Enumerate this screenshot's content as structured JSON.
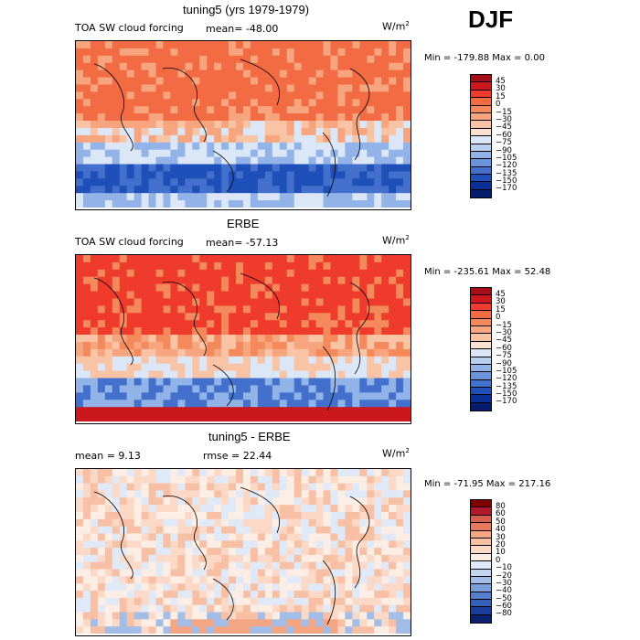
{
  "season": "DJF",
  "panels": [
    {
      "title": "tuning5 (yrs 1979-1979)",
      "field": "TOA SW cloud forcing",
      "mean": "mean= -48.00",
      "rmse": "",
      "units": "W/m",
      "units_exp": "2",
      "minmax": "Min = -179.88 Max =    0.00",
      "colorbar": [
        "45",
        "30",
        "15",
        "0",
        "−15",
        "−30",
        "−45",
        "−60",
        "−75",
        "−90",
        "−105",
        "−120",
        "−135",
        "−150",
        "−170"
      ],
      "colors": [
        "#a50f15",
        "#cb181d",
        "#ef3b2c",
        "#f26b42",
        "#f48a5c",
        "#f6a57e",
        "#f9c3a6",
        "#fbe1d1",
        "#dbe6f6",
        "#b9cff0",
        "#92b3e8",
        "#6a93dc",
        "#4270cc",
        "#1f4fb8",
        "#0a2f96",
        "#041c6e"
      ],
      "map_palette": [
        "#f26b42",
        "#f48a5c",
        "#f6a57e",
        "#f9c3a6",
        "#dbe6f6",
        "#92b3e8",
        "#4270cc",
        "#1f4fb8"
      ]
    },
    {
      "title": "ERBE",
      "field": "TOA SW cloud forcing",
      "mean": "mean= -57.13",
      "rmse": "",
      "units": "W/m",
      "units_exp": "2",
      "minmax": "Min = -235.61 Max =  52.48",
      "colorbar": [
        "45",
        "30",
        "15",
        "0",
        "−15",
        "−30",
        "−45",
        "−60",
        "−75",
        "−90",
        "−105",
        "−120",
        "−135",
        "−150",
        "−170"
      ],
      "colors": [
        "#a50f15",
        "#cb181d",
        "#ef3b2c",
        "#f26b42",
        "#f48a5c",
        "#f6a57e",
        "#f9c3a6",
        "#fbe1d1",
        "#dbe6f6",
        "#b9cff0",
        "#92b3e8",
        "#6a93dc",
        "#4270cc",
        "#1f4fb8",
        "#0a2f96",
        "#041c6e"
      ],
      "map_palette": [
        "#ef3b2c",
        "#f26b42",
        "#f48a5c",
        "#f6a57e",
        "#f9c3a6",
        "#dbe6f6",
        "#92b3e8",
        "#4270cc",
        "#1f4fb8",
        "#cb181d"
      ]
    },
    {
      "title": "tuning5 - ERBE",
      "field": "",
      "mean": "mean =    9.13",
      "rmse": "rmse =   22.44",
      "units": "W/m",
      "units_exp": "2",
      "minmax": "Min = -71.95 Max = 217.16",
      "colorbar": [
        "80",
        "60",
        "50",
        "40",
        "30",
        "20",
        "10",
        "0",
        "−10",
        "−20",
        "−30",
        "−40",
        "−50",
        "−60",
        "−80"
      ],
      "colors": [
        "#7f0000",
        "#b2182b",
        "#d6604d",
        "#e6785e",
        "#f4a582",
        "#f7c0a4",
        "#fbd9c6",
        "#fdeee5",
        "#dfe9f7",
        "#c2d6f1",
        "#a1bde8",
        "#7aa0dc",
        "#557fcc",
        "#3560b8",
        "#1a3d99",
        "#0b2170"
      ],
      "map_palette": [
        "#fdeee5",
        "#fbd9c6",
        "#f7c0a4",
        "#dfe9f7",
        "#c2d6f1",
        "#f4a582",
        "#a1bde8"
      ]
    }
  ],
  "chart_data": [
    {
      "type": "heatmap",
      "title": "tuning5 (yrs 1979-1979)",
      "subtitle": "TOA SW cloud forcing",
      "mean": -48.0,
      "units": "W/m2",
      "min": -179.88,
      "max": 0.0,
      "levels": [
        45,
        30,
        15,
        0,
        -15,
        -30,
        -45,
        -60,
        -75,
        -90,
        -105,
        -120,
        -135,
        -150,
        -170
      ]
    },
    {
      "type": "heatmap",
      "title": "ERBE",
      "subtitle": "TOA SW cloud forcing",
      "mean": -57.13,
      "units": "W/m2",
      "min": -235.61,
      "max": 52.48,
      "levels": [
        45,
        30,
        15,
        0,
        -15,
        -30,
        -45,
        -60,
        -75,
        -90,
        -105,
        -120,
        -135,
        -150,
        -170
      ]
    },
    {
      "type": "heatmap",
      "title": "tuning5 - ERBE",
      "mean": 9.13,
      "rmse": 22.44,
      "units": "W/m2",
      "min": -71.95,
      "max": 217.16,
      "levels": [
        80,
        60,
        50,
        40,
        30,
        20,
        10,
        0,
        -10,
        -20,
        -30,
        -40,
        -50,
        -60,
        -80
      ]
    }
  ]
}
